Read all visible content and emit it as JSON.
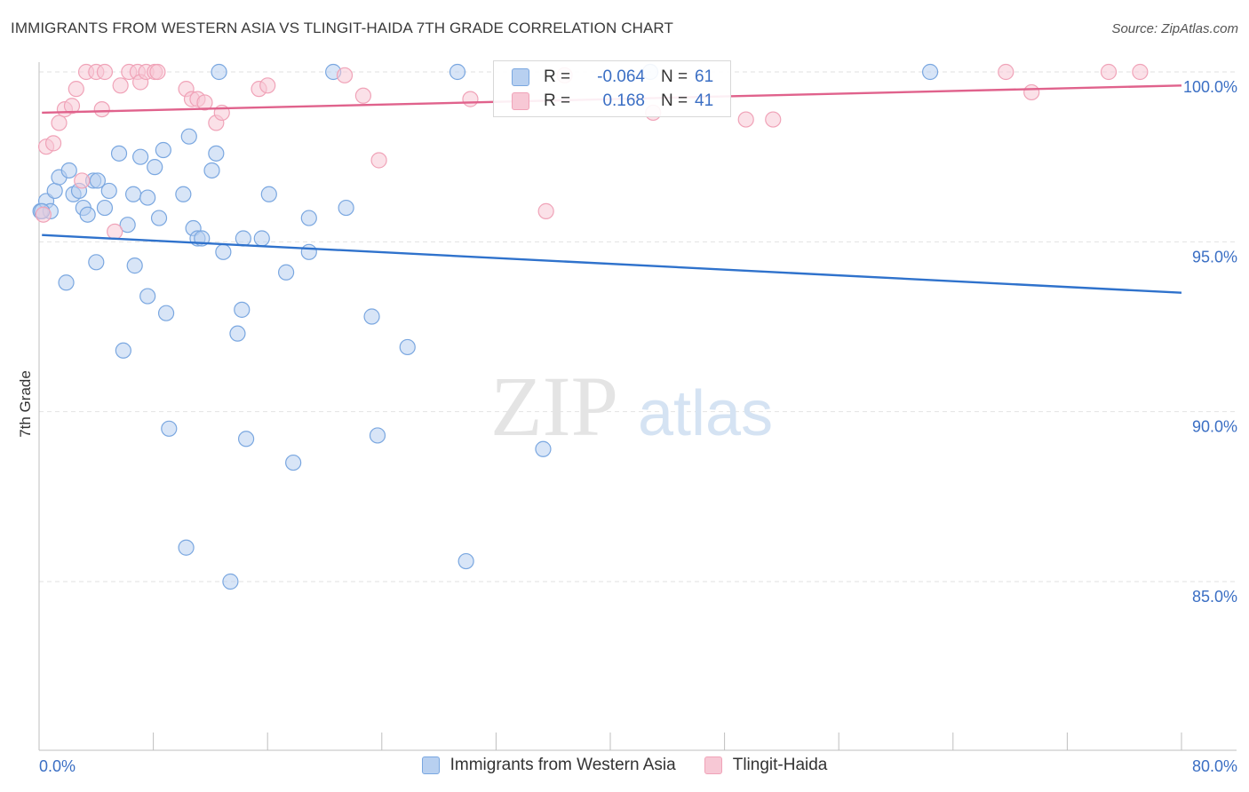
{
  "title": "IMMIGRANTS FROM WESTERN ASIA VS TLINGIT-HAIDA 7TH GRADE CORRELATION CHART",
  "source": "Source: ZipAtlas.com",
  "watermark": {
    "zip": "ZIP",
    "atlas": "atlas"
  },
  "legend": {
    "rows": [
      {
        "r_label": "R =",
        "r_value": "-0.064",
        "n_label": "N =",
        "n_value": "61"
      },
      {
        "r_label": "R =",
        "r_value": "0.168",
        "n_label": "N =",
        "n_value": "41"
      }
    ]
  },
  "chart_data": {
    "type": "scatter",
    "ylabel": "7th Grade",
    "xlim": [
      0,
      80
    ],
    "ylim": [
      80.5,
      100.8
    ],
    "x_tick_labels": [
      "0.0%",
      "80.0%"
    ],
    "y_ticks": [
      85,
      90,
      95,
      100
    ],
    "y_tick_labels": [
      "85.0%",
      "90.0%",
      "95.0%",
      "100.0%"
    ],
    "grid": true,
    "legend_position": "bottom",
    "series": [
      {
        "name": "Immigrants from Western Asia",
        "color": "#7aa7e0",
        "fill": "#b8d0f0",
        "line_color": "#2f72cc",
        "trend": [
          [
            0.2,
            95.2
          ],
          [
            80,
            93.5
          ]
        ],
        "points": [
          [
            0.1,
            95.9
          ],
          [
            0.5,
            96.2
          ],
          [
            0.8,
            95.9
          ],
          [
            1.1,
            96.5
          ],
          [
            1.4,
            96.9
          ],
          [
            2.1,
            97.1
          ],
          [
            2.4,
            96.4
          ],
          [
            2.8,
            96.5
          ],
          [
            3.1,
            96.0
          ],
          [
            3.4,
            95.8
          ],
          [
            3.8,
            96.8
          ],
          [
            4.1,
            96.8
          ],
          [
            4.6,
            96.0
          ],
          [
            4.9,
            96.5
          ],
          [
            5.6,
            97.6
          ],
          [
            6.2,
            95.5
          ],
          [
            6.6,
            96.4
          ],
          [
            7.1,
            97.5
          ],
          [
            7.6,
            96.3
          ],
          [
            8.1,
            97.2
          ],
          [
            8.4,
            95.7
          ],
          [
            8.7,
            97.7
          ],
          [
            10.1,
            96.4
          ],
          [
            10.5,
            98.1
          ],
          [
            10.8,
            95.4
          ],
          [
            11.1,
            95.1
          ],
          [
            11.4,
            95.1
          ],
          [
            12.1,
            97.1
          ],
          [
            12.4,
            97.6
          ],
          [
            12.9,
            94.7
          ],
          [
            14.3,
            95.1
          ],
          [
            15.6,
            95.1
          ],
          [
            16.1,
            96.4
          ],
          [
            17.3,
            94.1
          ],
          [
            18.9,
            94.7
          ],
          [
            18.9,
            95.7
          ],
          [
            21.5,
            96.0
          ],
          [
            4.0,
            94.4
          ],
          [
            6.7,
            94.3
          ],
          [
            1.9,
            93.8
          ],
          [
            7.6,
            93.4
          ],
          [
            8.9,
            92.9
          ],
          [
            13.9,
            92.3
          ],
          [
            14.2,
            93.0
          ],
          [
            23.3,
            92.8
          ],
          [
            5.9,
            91.8
          ],
          [
            25.8,
            91.9
          ],
          [
            9.1,
            89.5
          ],
          [
            14.5,
            89.2
          ],
          [
            17.8,
            88.5
          ],
          [
            23.7,
            89.3
          ],
          [
            35.3,
            88.9
          ],
          [
            10.3,
            86.0
          ],
          [
            13.4,
            85.0
          ],
          [
            29.9,
            85.6
          ],
          [
            12.6,
            100.0
          ],
          [
            20.6,
            100.0
          ],
          [
            29.3,
            100.0
          ],
          [
            42.8,
            100.0
          ],
          [
            62.4,
            100.0
          ],
          [
            0.2,
            95.9
          ]
        ]
      },
      {
        "name": "Tlingit-Haida",
        "color": "#f0a3b8",
        "fill": "#f7c8d5",
        "line_color": "#e0628c",
        "trend": [
          [
            0.2,
            98.8
          ],
          [
            80,
            99.6
          ]
        ],
        "points": [
          [
            0.5,
            97.8
          ],
          [
            1.0,
            97.9
          ],
          [
            1.4,
            98.5
          ],
          [
            1.8,
            98.9
          ],
          [
            2.3,
            99.0
          ],
          [
            2.6,
            99.5
          ],
          [
            3.0,
            96.8
          ],
          [
            3.3,
            100.0
          ],
          [
            4.0,
            100.0
          ],
          [
            4.6,
            100.0
          ],
          [
            4.4,
            98.9
          ],
          [
            5.3,
            95.3
          ],
          [
            5.7,
            99.6
          ],
          [
            6.3,
            100.0
          ],
          [
            6.9,
            100.0
          ],
          [
            7.1,
            99.7
          ],
          [
            7.5,
            100.0
          ],
          [
            8.1,
            100.0
          ],
          [
            8.3,
            100.0
          ],
          [
            10.3,
            99.5
          ],
          [
            10.7,
            99.2
          ],
          [
            11.1,
            99.2
          ],
          [
            11.6,
            99.1
          ],
          [
            12.4,
            98.5
          ],
          [
            12.8,
            98.8
          ],
          [
            15.4,
            99.5
          ],
          [
            16.0,
            99.6
          ],
          [
            21.4,
            99.9
          ],
          [
            22.7,
            99.3
          ],
          [
            23.8,
            97.4
          ],
          [
            30.2,
            99.2
          ],
          [
            35.5,
            95.9
          ],
          [
            36.8,
            99.9
          ],
          [
            43.0,
            98.8
          ],
          [
            49.5,
            98.6
          ],
          [
            51.4,
            98.6
          ],
          [
            67.7,
            100.0
          ],
          [
            69.5,
            99.4
          ],
          [
            74.9,
            100.0
          ],
          [
            77.1,
            100.0
          ],
          [
            0.3,
            95.8
          ]
        ]
      }
    ]
  }
}
